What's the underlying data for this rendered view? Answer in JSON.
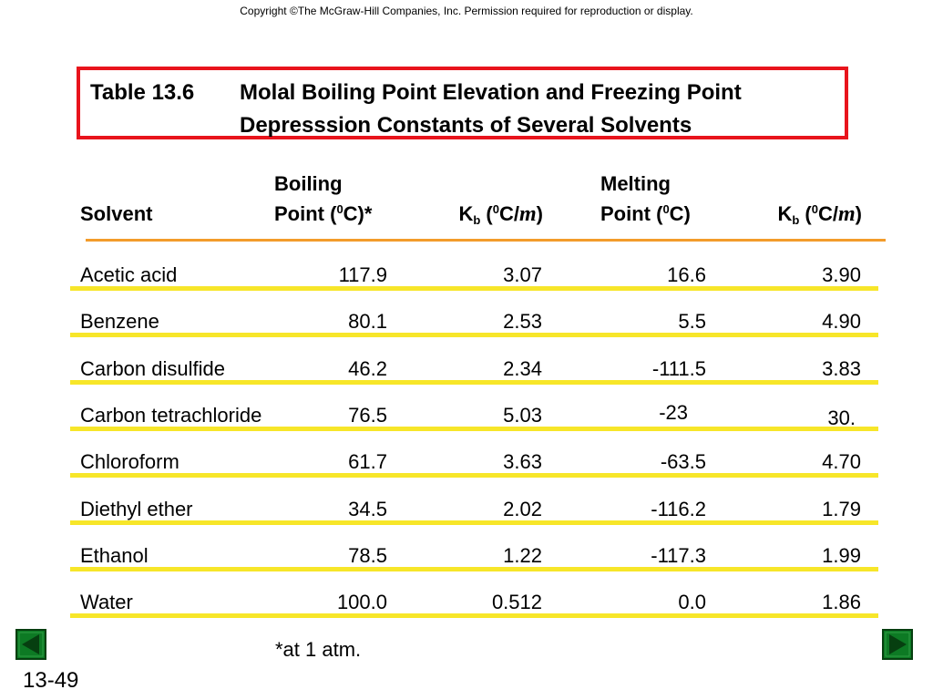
{
  "copyright": "Copyright ©The McGraw-Hill Companies, Inc.  Permission required for reproduction or display.",
  "title": {
    "number": "Table 13.6",
    "line1": "Molal Boiling Point Elevation and Freezing Point",
    "line2": "Depresssion Constants of Several Solvents"
  },
  "headers": {
    "solvent": "Solvent",
    "boiling_top": "Boiling",
    "boiling_bottom_pre": "Point (",
    "boiling_sup": "0",
    "boiling_bottom_post": "C)*",
    "kb_k": "K",
    "kb_sub": "b",
    "kb_open": " (",
    "kb_sup": "0",
    "kb_unit": "C/",
    "kb_m": "m",
    "kb_close": ")",
    "melting_top": "Melting",
    "melting_bottom_pre": "Point (",
    "melting_sup": "0",
    "melting_bottom_post": "C)",
    "kf_k": "K",
    "kf_sub": "b",
    "kf_open": " (",
    "kf_sup": "0",
    "kf_unit": "C/",
    "kf_m": "m",
    "kf_close": ")"
  },
  "rows": [
    {
      "solvent": "Acetic acid",
      "bp": "117.9",
      "kb": "3.07",
      "mp": "16.6",
      "kf": "3.90"
    },
    {
      "solvent": "Benzene",
      "bp": "80.1",
      "kb": "2.53",
      "mp": "5.5",
      "kf": "4.90"
    },
    {
      "solvent": "Carbon disulfide",
      "bp": "46.2",
      "kb": "2.34",
      "mp": "-111.5",
      "kf": "3.83"
    },
    {
      "solvent": "Carbon tetrachloride",
      "bp": "76.5",
      "kb": "5.03",
      "mp": "-23",
      "kf": "30."
    },
    {
      "solvent": "Chloroform",
      "bp": "61.7",
      "kb": "3.63",
      "mp": "-63.5",
      "kf": "4.70"
    },
    {
      "solvent": "Diethyl ether",
      "bp": "34.5",
      "kb": "2.02",
      "mp": "-116.2",
      "kf": "1.79"
    },
    {
      "solvent": "Ethanol",
      "bp": "78.5",
      "kb": "1.22",
      "mp": "-117.3",
      "kf": "1.99"
    },
    {
      "solvent": "Water",
      "bp": "100.0",
      "kb": "0.512",
      "mp": "0.0",
      "kf": "1.86"
    }
  ],
  "footnote": "*at 1 atm.",
  "page_number": "13-49",
  "nav": {
    "prev_icon": "triangle-left-icon",
    "next_icon": "triangle-right-icon",
    "button_color": "#0d7a24"
  }
}
